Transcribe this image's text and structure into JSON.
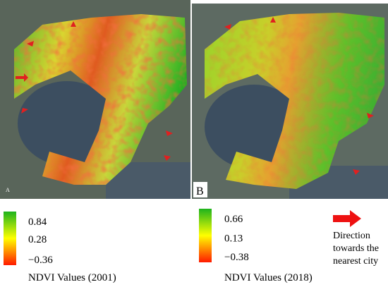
{
  "panels": [
    {
      "label": "A"
    },
    {
      "label": "B"
    }
  ],
  "legends": [
    {
      "title": "NDVI Values (2001)",
      "ticks": [
        0.84,
        0.28,
        {
          "value": -0.36,
          "label": "−0.36"
        }
      ]
    },
    {
      "title": "NDVI Values (2018)",
      "ticks": [
        0.66,
        0.13,
        {
          "value": -0.38,
          "label": "−0.38"
        }
      ]
    }
  ],
  "direction_legend": "Direction towards the nearest city"
}
